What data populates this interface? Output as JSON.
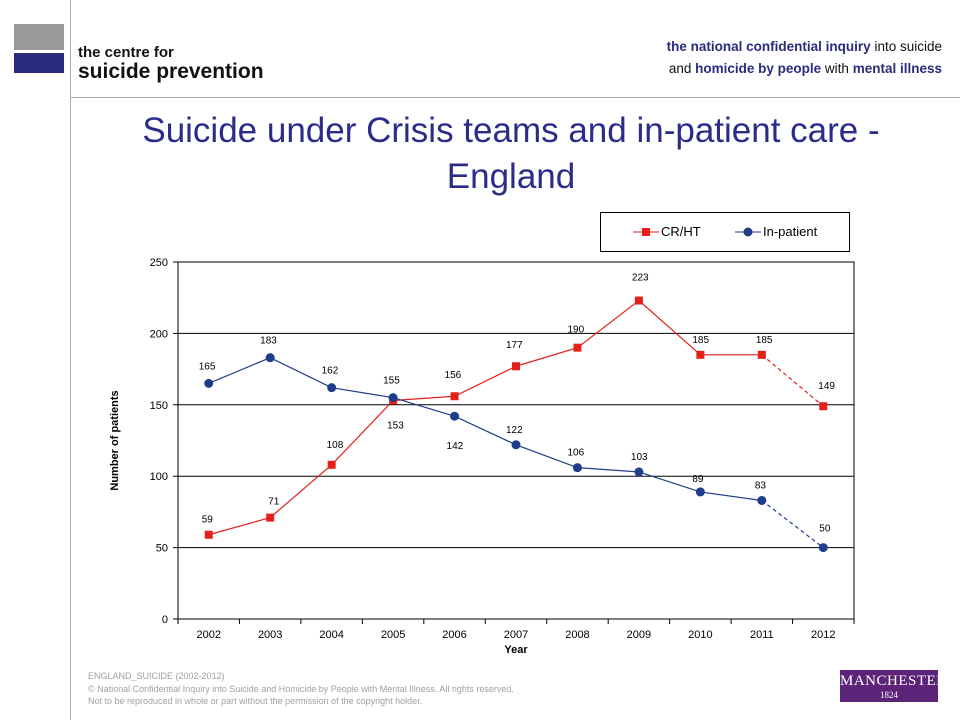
{
  "header": {
    "centre_line1": "the centre for",
    "centre_line2": "suicide prevention",
    "inquiry_line1_bold": "the national confidential inquiry",
    "inquiry_line1_rest": "into suicide",
    "inquiry_line2_rest1": "and",
    "inquiry_line2_bold": "homicide by people",
    "inquiry_line2_rest2": "with",
    "inquiry_line2_bold2": "mental illness"
  },
  "footer": {
    "line1": "ENGLAND_SUICIDE (2002-2012)",
    "line2": "© National Confidential Inquiry into Suicide and Homicide by People with Mental Illness. All rights reserved.",
    "line3": "Not to be reproduced in whole or part without the permission of the copyright holder."
  },
  "university_logo": {
    "name": "MANCHESTER",
    "year": "1824"
  },
  "colors": {
    "crht": "#e32119",
    "inpatient": "#1f3d8a",
    "title": "#2b2b8a",
    "logo_purple": "#5c2479"
  },
  "chart_data": {
    "type": "line",
    "title": "Suicide under Crisis teams and in-patient care - England",
    "xlabel": "Year",
    "ylabel": "Number of patients",
    "ylim": [
      0,
      250
    ],
    "yticks": [
      0,
      50,
      100,
      150,
      200,
      250
    ],
    "grid": true,
    "legend_position": "top-right",
    "categories": [
      "2002",
      "2003",
      "2004",
      "2005",
      "2006",
      "2007",
      "2008",
      "2009",
      "2010",
      "2011",
      "2012"
    ],
    "series": [
      {
        "name": "CR/HT",
        "marker": "square",
        "values": [
          59,
          71,
          108,
          153,
          156,
          177,
          190,
          223,
          185,
          185,
          149
        ],
        "last_segment_dashed": true
      },
      {
        "name": "In-patient",
        "marker": "circle",
        "values": [
          165,
          183,
          162,
          155,
          142,
          122,
          106,
          103,
          89,
          83,
          50
        ],
        "last_segment_dashed": true
      }
    ]
  }
}
